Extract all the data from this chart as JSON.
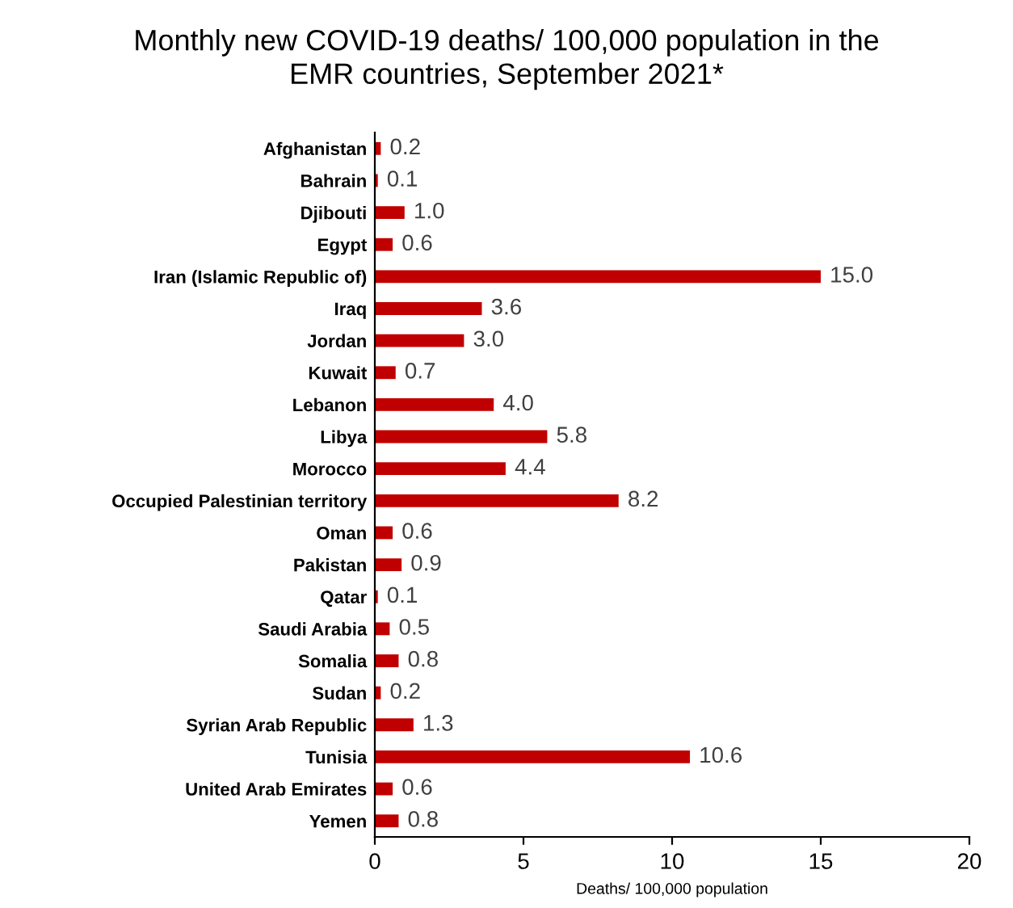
{
  "chart_data": {
    "type": "bar",
    "orientation": "horizontal",
    "title": "Monthly new COVID-19 deaths/ 100,000 population in the\nEMR countries, September 2021*",
    "xlabel": "Deaths/ 100,000 population",
    "categories": [
      "Afghanistan",
      "Bahrain",
      "Djibouti",
      "Egypt",
      "Iran (Islamic Republic of)",
      "Iraq",
      "Jordan",
      "Kuwait",
      "Lebanon",
      "Libya",
      "Morocco",
      "Occupied Palestinian territory",
      "Oman",
      "Pakistan",
      "Qatar",
      "Saudi Arabia",
      "Somalia",
      "Sudan",
      "Syrian Arab Republic",
      "Tunisia",
      "United Arab Emirates",
      "Yemen"
    ],
    "values": [
      0.2,
      0.1,
      1.0,
      0.6,
      15.0,
      3.6,
      3.0,
      0.7,
      4.0,
      5.8,
      4.4,
      8.2,
      0.6,
      0.9,
      0.1,
      0.5,
      0.8,
      0.2,
      1.3,
      10.6,
      0.6,
      0.8
    ],
    "value_labels": [
      "0.2",
      "0.1",
      "1.0",
      "0.6",
      "15.0",
      "3.6",
      "3.0",
      "0.7",
      "4.0",
      "5.8",
      "4.4",
      "8.2",
      "0.6",
      "0.9",
      "0.1",
      "0.5",
      "0.8",
      "0.2",
      "1.3",
      "10.6",
      "0.6",
      "0.8"
    ],
    "color": "#c00000",
    "xlim": [
      0,
      20
    ],
    "xticks": [
      0,
      5,
      10,
      15,
      20
    ],
    "grid": false,
    "legend": false
  }
}
